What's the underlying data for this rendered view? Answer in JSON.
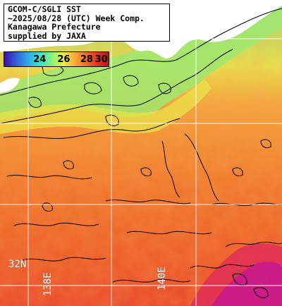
{
  "title_lines": [
    "GCOM-C/SGLI SST",
    "~2025/08/28 (UTC) Week Comp.",
    "Kanagawa Prefecture",
    "supplied by JAXA"
  ],
  "colorbar": {
    "ticks": [
      "24",
      "26",
      "28",
      "30"
    ],
    "tick_values": [
      24,
      26,
      28,
      30
    ],
    "range": [
      22.5,
      31.5
    ]
  },
  "grid": {
    "lat_label": "32N",
    "lon_labels": [
      "138E",
      "140E"
    ]
  },
  "colors": {
    "land": "#ffffff",
    "warm_sea": "#f07a2a",
    "hot_sea": "#d81f86",
    "cool_sea": "#8ef07a",
    "grid": "#ffffff",
    "contour": "#000000"
  }
}
